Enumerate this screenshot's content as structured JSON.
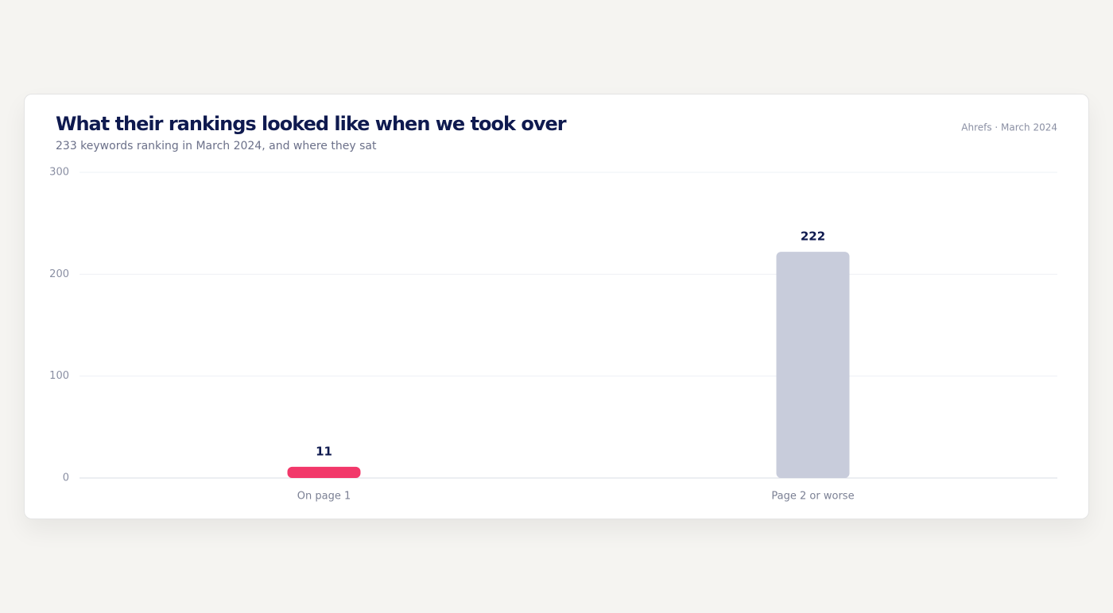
{
  "chart_data": {
    "type": "bar",
    "title": "What their rankings looked like when we took over",
    "subtitle": "233 keywords ranking in March 2024, and where they sat",
    "source": "Ahrefs · March 2024",
    "categories": [
      "On page 1",
      "Page 2 or worse"
    ],
    "values": [
      11,
      222
    ],
    "colors": [
      "#f2386a",
      "#c8ccdb"
    ],
    "ylim": [
      0,
      300
    ],
    "yticks": [
      0,
      100,
      200,
      300
    ],
    "grid": true
  }
}
